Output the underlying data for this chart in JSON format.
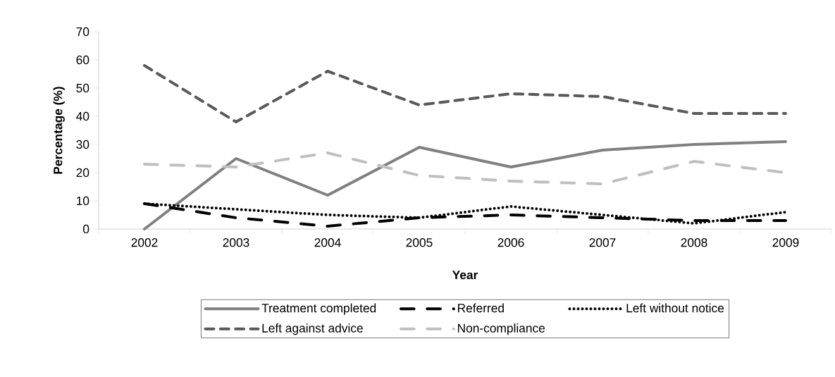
{
  "chart_data": {
    "type": "line",
    "xlabel": "Year",
    "ylabel": "Percentage (%)",
    "categories": [
      "2002",
      "2003",
      "2004",
      "2005",
      "2006",
      "2007",
      "2008",
      "2009"
    ],
    "ylim": [
      0,
      70
    ],
    "yticks": [
      0,
      10,
      20,
      30,
      40,
      50,
      60,
      70
    ],
    "grid": false,
    "legend": "bottom",
    "marker": "none",
    "series": [
      {
        "name": "Treatment completed",
        "color": "#808080",
        "line_style": "solid",
        "values": [
          0,
          25,
          12,
          29,
          22,
          28,
          30,
          31
        ]
      },
      {
        "name": "Referred",
        "color": "#000000",
        "line_style": "dashdot",
        "values": [
          9,
          4,
          1,
          4,
          5,
          4,
          3,
          3
        ]
      },
      {
        "name": "Left without notice",
        "color": "#000000",
        "line_style": "dotted",
        "values": [
          9,
          7,
          5,
          4,
          8,
          5,
          2,
          6
        ]
      },
      {
        "name": "Left against advice",
        "color": "#595959",
        "line_style": "dashed",
        "values": [
          58,
          38,
          56,
          44,
          48,
          47,
          41,
          41
        ]
      },
      {
        "name": "Non-compliance",
        "color": "#bfbfbf",
        "line_style": "dashdot",
        "values": [
          23,
          22,
          27,
          19,
          17,
          16,
          24,
          20
        ]
      }
    ]
  }
}
